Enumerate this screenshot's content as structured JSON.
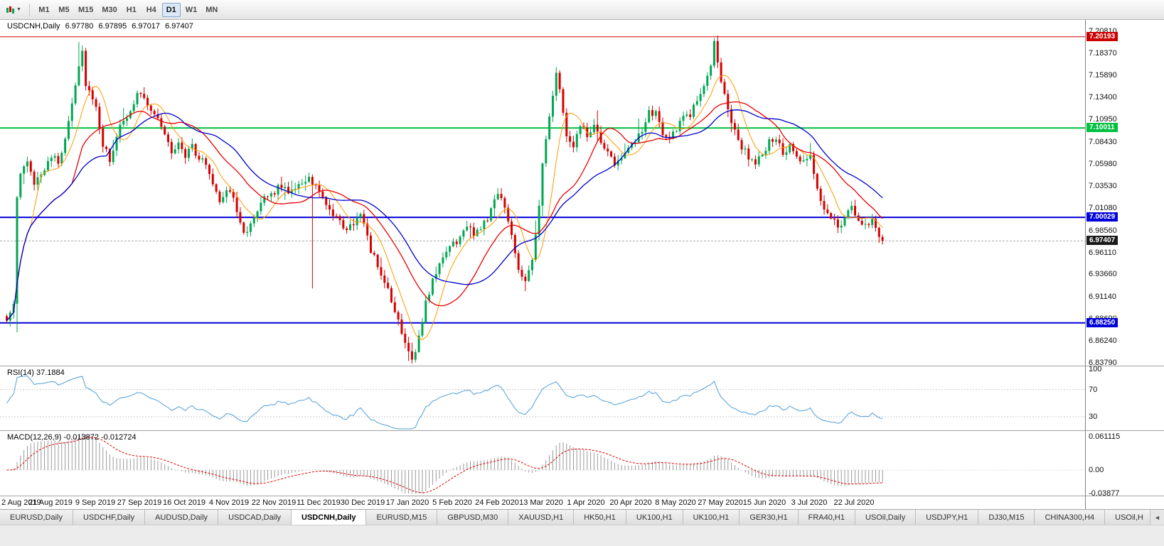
{
  "toolbar": {
    "dropdown_caret": "▼",
    "timeframes": [
      "M1",
      "M5",
      "M15",
      "M30",
      "H1",
      "H4",
      "D1",
      "W1",
      "MN"
    ],
    "active_timeframe": "D1"
  },
  "chart_header": {
    "title": "USDCNH,Daily",
    "open": "6.97780",
    "high": "6.97895",
    "low": "6.97017",
    "close": "6.97407"
  },
  "price_axis_labels": [
    "7.20810",
    "7.18370",
    "7.15890",
    "7.13400",
    "7.10950",
    "7.08430",
    "7.05980",
    "7.03530",
    "7.01080",
    "6.98560",
    "6.96110",
    "6.93660",
    "6.91140",
    "6.88690",
    "6.86240",
    "6.83790"
  ],
  "levels": [
    {
      "name": "resistance-line",
      "label": "7.20193",
      "value": 7.20193,
      "color": "#cc0000",
      "width": 1,
      "dash": ""
    },
    {
      "name": "pivot-line-green",
      "label": "7.10011",
      "value": 7.10011,
      "color": "#00c040",
      "width": 2,
      "dash": ""
    },
    {
      "name": "support-line-7000",
      "label": "7.00029",
      "value": 7.00029,
      "color": "#0000d8",
      "width": 2,
      "dash": ""
    },
    {
      "name": "support-line-6882",
      "label": "6.88250",
      "value": 6.8825,
      "color": "#0000d8",
      "width": 2,
      "dash": ""
    },
    {
      "name": "bid-price-line",
      "label": "6.97407",
      "value": 6.97407,
      "color": "#aaaaaa",
      "badge": "#1a1a1a",
      "width": 1,
      "dash": "3,2"
    }
  ],
  "date_labels": [
    "2 Aug 2019",
    "21 Aug 2019",
    "9 Sep 2019",
    "27 Sep 2019",
    "16 Oct 2019",
    "4 Nov 2019",
    "22 Nov 2019",
    "11 Dec 2019",
    "30 Dec 2019",
    "17 Jan 2020",
    "5 Feb 2020",
    "24 Feb 2020",
    "13 Mar 2020",
    "1 Apr 2020",
    "20 Apr 2020",
    "8 May 2020",
    "27 May 2020",
    "15 Jun 2020",
    "3 Jul 2020",
    "22 Jul 2020"
  ],
  "rsi_panel": {
    "label": "RSI(14) 37.1884",
    "period": 14,
    "current": 37.1884,
    "upper": 70,
    "lower": 30,
    "axis_labels": [
      "100",
      "70",
      "30"
    ],
    "line_color": "#4f9ed9"
  },
  "macd_panel": {
    "label": "MACD(12,26,9) -0.013872 -0.012724",
    "fast": 12,
    "slow": 26,
    "signal": 9,
    "macd_value": -0.013872,
    "signal_value": -0.012724,
    "axis_labels": [
      "0.061115",
      "0.00",
      "-0.03877"
    ],
    "histogram_color": "#999999",
    "signal_color": "#e00000"
  },
  "tabs": {
    "items": [
      "EURUSD,Daily",
      "USDCHF,Daily",
      "AUDUSD,Daily",
      "USDCAD,Daily",
      "USDCNH,Daily",
      "EURUSD,M15",
      "GBPUSD,M30",
      "XAUUSD,H1",
      "HK50,H1",
      "UK100,H1",
      "UK100,H1",
      "GER30,H1",
      "FRA40,H1",
      "USOil,Daily",
      "USDJPY,H1",
      "DJ30,M15",
      "CHINA300,H4",
      "USOil,H"
    ],
    "active": "USDCNH,Daily",
    "scroll_left_icon": "◄"
  },
  "chart_data": {
    "type": "candlestick",
    "symbol": "USDCNH",
    "timeframe": "Daily",
    "bars": 256,
    "bars_per_label": 13,
    "last_close": 6.97407,
    "price_range": {
      "top": 7.2081,
      "bottom": 6.8379
    },
    "up_color": "#00a651",
    "down_color": "#d60000",
    "anchors": [
      [
        0,
        6.885
      ],
      [
        2,
        6.9
      ],
      [
        3,
        7.02
      ],
      [
        4,
        7.05
      ],
      [
        6,
        7.06
      ],
      [
        8,
        7.04
      ],
      [
        10,
        7.05
      ],
      [
        13,
        7.07
      ],
      [
        15,
        7.06
      ],
      [
        17,
        7.09
      ],
      [
        19,
        7.13
      ],
      [
        21,
        7.17
      ],
      [
        22,
        7.185
      ],
      [
        23,
        7.15
      ],
      [
        25,
        7.13
      ],
      [
        26,
        7.12
      ],
      [
        28,
        7.08
      ],
      [
        30,
        7.065
      ],
      [
        33,
        7.1
      ],
      [
        36,
        7.12
      ],
      [
        38,
        7.14
      ],
      [
        40,
        7.135
      ],
      [
        42,
        7.12
      ],
      [
        44,
        7.11
      ],
      [
        46,
        7.095
      ],
      [
        48,
        7.07
      ],
      [
        50,
        7.085
      ],
      [
        52,
        7.07
      ],
      [
        54,
        7.08
      ],
      [
        56,
        7.065
      ],
      [
        58,
        7.06
      ],
      [
        60,
        7.04
      ],
      [
        62,
        7.02
      ],
      [
        65,
        7.03
      ],
      [
        67,
        7.01
      ],
      [
        69,
        6.985
      ],
      [
        71,
        6.99
      ],
      [
        73,
        7.005
      ],
      [
        75,
        7.02
      ],
      [
        78,
        7.03
      ],
      [
        80,
        7.035
      ],
      [
        82,
        7.03
      ],
      [
        84,
        7.035
      ],
      [
        86,
        7.04
      ],
      [
        88,
        7.045
      ],
      [
        89,
        7.035
      ],
      [
        91,
        7.03
      ],
      [
        93,
        7.015
      ],
      [
        95,
        7.0
      ],
      [
        97,
        6.995
      ],
      [
        99,
        6.985
      ],
      [
        101,
        6.995
      ],
      [
        103,
        7.0
      ],
      [
        104,
        6.995
      ],
      [
        106,
        6.965
      ],
      [
        108,
        6.945
      ],
      [
        110,
        6.93
      ],
      [
        112,
        6.905
      ],
      [
        114,
        6.885
      ],
      [
        116,
        6.862
      ],
      [
        118,
        6.843
      ],
      [
        120,
        6.865
      ],
      [
        122,
        6.905
      ],
      [
        124,
        6.93
      ],
      [
        126,
        6.945
      ],
      [
        128,
        6.965
      ],
      [
        130,
        6.97
      ],
      [
        132,
        6.978
      ],
      [
        134,
        6.99
      ],
      [
        136,
        6.982
      ],
      [
        138,
        6.99
      ],
      [
        140,
        7.0
      ],
      [
        142,
        7.02
      ],
      [
        143,
        7.03
      ],
      [
        145,
        7.01
      ],
      [
        147,
        6.98
      ],
      [
        149,
        6.945
      ],
      [
        151,
        6.93
      ],
      [
        153,
        6.955
      ],
      [
        155,
        7.01
      ],
      [
        156,
        7.06
      ],
      [
        158,
        7.11
      ],
      [
        160,
        7.16
      ],
      [
        161,
        7.145
      ],
      [
        163,
        7.09
      ],
      [
        165,
        7.075
      ],
      [
        167,
        7.105
      ],
      [
        169,
        7.09
      ],
      [
        171,
        7.1
      ],
      [
        173,
        7.085
      ],
      [
        175,
        7.07
      ],
      [
        177,
        7.06
      ],
      [
        179,
        7.07
      ],
      [
        181,
        7.075
      ],
      [
        183,
        7.085
      ],
      [
        185,
        7.095
      ],
      [
        187,
        7.12
      ],
      [
        189,
        7.115
      ],
      [
        191,
        7.095
      ],
      [
        193,
        7.09
      ],
      [
        195,
        7.1
      ],
      [
        197,
        7.11
      ],
      [
        199,
        7.115
      ],
      [
        201,
        7.13
      ],
      [
        203,
        7.15
      ],
      [
        205,
        7.17
      ],
      [
        206,
        7.193
      ],
      [
        208,
        7.155
      ],
      [
        210,
        7.12
      ],
      [
        212,
        7.095
      ],
      [
        214,
        7.08
      ],
      [
        216,
        7.068
      ],
      [
        218,
        7.06
      ],
      [
        220,
        7.07
      ],
      [
        222,
        7.085
      ],
      [
        224,
        7.09
      ],
      [
        226,
        7.07
      ],
      [
        228,
        7.078
      ],
      [
        230,
        7.068
      ],
      [
        232,
        7.06
      ],
      [
        234,
        7.068
      ],
      [
        236,
        7.03
      ],
      [
        238,
        7.01
      ],
      [
        240,
        7.002
      ],
      [
        242,
        6.99
      ],
      [
        244,
        7.0
      ],
      [
        246,
        7.01
      ],
      [
        248,
        6.998
      ],
      [
        250,
        6.99
      ],
      [
        252,
        7.0
      ],
      [
        254,
        6.982
      ],
      [
        255,
        6.974
      ]
    ],
    "wick_events": [
      {
        "i": 3,
        "low": 6.872
      },
      {
        "i": 21,
        "high": 7.196
      },
      {
        "i": 89,
        "low": 6.921
      },
      {
        "i": 117,
        "low": 6.84
      },
      {
        "i": 118,
        "low": 6.837
      },
      {
        "i": 151,
        "low": 6.918
      },
      {
        "i": 160,
        "high": 7.168
      },
      {
        "i": 206,
        "high": 7.1965
      }
    ],
    "moving_averages": [
      {
        "name": "fast-ma",
        "period": 8,
        "color": "#ff9900",
        "width": 1
      },
      {
        "name": "medium-ma",
        "period": 20,
        "color": "#e60000",
        "width": 1.3
      },
      {
        "name": "slow-ma",
        "period": 30,
        "color": "#0000cc",
        "width": 1.3
      }
    ]
  }
}
